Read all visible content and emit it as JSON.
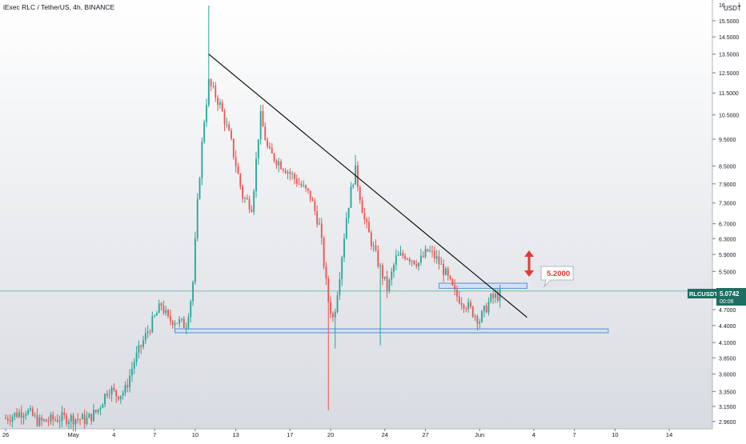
{
  "header": {
    "title": "iExec RLC / TetherUS, 4h, BINANCE",
    "currency": "USDT",
    "currency_suffix": "1"
  },
  "price_badge": {
    "symbol": "RLCUSDT",
    "price": "5.0742",
    "countdown": "00:06"
  },
  "annotation": {
    "label": "5.2000"
  },
  "colors": {
    "up": "#26a69a",
    "down": "#ef5350",
    "trendline": "#000000",
    "zone_fill": "#c6dcf5",
    "zone_stroke": "#5b8fd6",
    "arrow": "#e53935",
    "badge_bg": "#1e6e62",
    "label_text": "#e53935"
  },
  "chart_data": {
    "type": "candlestick",
    "title": "iExec RLC / TetherUS, 4h, BINANCE",
    "x_ticks": [
      "26",
      "May",
      "4",
      "7",
      "10",
      "13",
      "17",
      "20",
      "24",
      "27",
      "Jun",
      "4",
      "7",
      "10",
      "14"
    ],
    "y_ticks": [
      "15.5000",
      "14.5000",
      "13.5000",
      "12.5000",
      "11.5000",
      "10.5000",
      "9.5000",
      "8.5000",
      "7.9000",
      "7.3000",
      "6.7000",
      "6.3000",
      "5.9000",
      "5.5000",
      "4.7000",
      "4.4000",
      "4.1000",
      "3.8500",
      "3.6000",
      "3.3500",
      "3.1500",
      "2.9600"
    ],
    "y_top_partial": "16.",
    "y_scale": "log",
    "ylim": [
      2.9,
      16.5
    ],
    "x_range_days": [
      0,
      52
    ],
    "day_index_of_ticks": [
      0,
      5,
      8,
      11,
      14,
      17,
      21,
      24,
      28,
      31,
      35,
      39,
      42,
      45,
      49
    ],
    "anchors": [
      [
        0,
        3.0
      ],
      [
        1.5,
        3.1
      ],
      [
        2.5,
        2.95
      ],
      [
        4,
        3.0
      ],
      [
        5,
        3.0
      ],
      [
        6,
        2.98
      ],
      [
        6.8,
        3.1
      ],
      [
        7.6,
        3.4
      ],
      [
        8.2,
        3.3
      ],
      [
        8.8,
        3.35
      ],
      [
        9.5,
        3.8
      ],
      [
        10.5,
        4.3
      ],
      [
        11.5,
        4.8
      ],
      [
        12,
        4.5
      ],
      [
        12.5,
        4.5
      ],
      [
        13.3,
        4.4
      ],
      [
        13.8,
        5.1
      ],
      [
        14.2,
        7.5
      ],
      [
        14.6,
        10.0
      ],
      [
        15.0,
        12.0
      ],
      [
        15.8,
        11.0
      ],
      [
        16.6,
        9.5
      ],
      [
        17.5,
        7.5
      ],
      [
        18.2,
        7.2
      ],
      [
        18.8,
        10.5
      ],
      [
        19.4,
        9.0
      ],
      [
        20.5,
        8.5
      ],
      [
        21.5,
        8.0
      ],
      [
        22.5,
        7.5
      ],
      [
        23.2,
        6.6
      ],
      [
        23.8,
        4.9
      ],
      [
        24.2,
        4.5
      ],
      [
        24.6,
        5.3
      ],
      [
        25.2,
        7.0
      ],
      [
        25.8,
        8.4
      ],
      [
        26.5,
        6.8
      ],
      [
        27.3,
        5.9
      ],
      [
        28.2,
        5.1
      ],
      [
        28.8,
        5.8
      ],
      [
        29.5,
        5.9
      ],
      [
        30.5,
        5.7
      ],
      [
        31.2,
        6.0
      ],
      [
        31.8,
        5.8
      ],
      [
        32.4,
        5.5
      ],
      [
        33.2,
        5.0
      ],
      [
        34.0,
        4.8
      ],
      [
        35.0,
        4.5
      ],
      [
        35.8,
        4.9
      ],
      [
        36.5,
        5.0
      ]
    ],
    "candles_per_day": 6,
    "trendline": {
      "from": [
        15.0,
        13.5
      ],
      "to": [
        38.5,
        4.55
      ]
    },
    "support_zone": {
      "x0": 12.5,
      "x1": 44.5,
      "y_low": 4.27,
      "y_high": 4.34
    },
    "resistance_zone": {
      "x0": 32.0,
      "x1": 38.5,
      "y_low": 5.13,
      "y_high": 5.24
    },
    "current_price": 5.0742,
    "target_label": 5.2,
    "spikes": [
      {
        "day": 15.0,
        "high": 16.5
      },
      {
        "day": 23.8,
        "low": 3.1
      },
      {
        "day": 24.3,
        "low": 4.0
      },
      {
        "day": 27.7,
        "low": 4.05
      },
      {
        "day": 25.8,
        "high": 8.9
      }
    ]
  }
}
